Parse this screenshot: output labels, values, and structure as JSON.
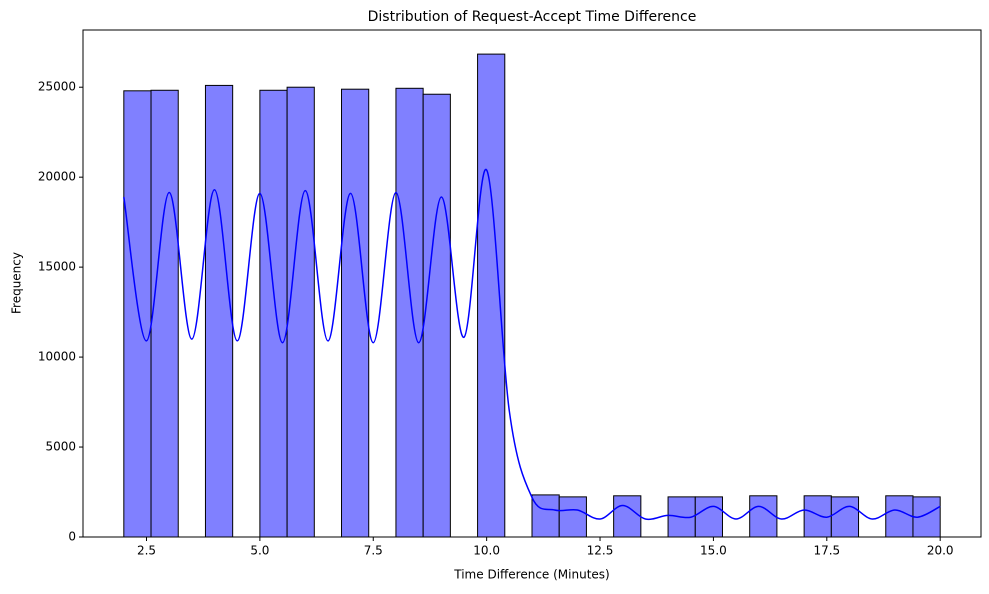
{
  "chart_data": {
    "type": "histogram",
    "title": "Distribution of Request-Accept Time Difference",
    "x_label": "Time Difference (Minutes)",
    "y_label": "Frequency",
    "bins": [
      2,
      2.6,
      3.2,
      3.8,
      4.4,
      5,
      5.6,
      6.2,
      6.8,
      7.4,
      8,
      8.6,
      9.2,
      9.8,
      10.4,
      11,
      11.6,
      12.2,
      12.8,
      13.4,
      14,
      14.6,
      15.2,
      15.8,
      16.4,
      17,
      17.6,
      18.2,
      18.8,
      19.4,
      20
    ],
    "values": [
      24800,
      24830,
      0,
      25100,
      0,
      24830,
      25000,
      0,
      24890,
      0,
      24940,
      24610,
      0,
      26840,
      0,
      2340,
      2230,
      0,
      2290,
      0,
      2230,
      2230,
      0,
      2290,
      0,
      2290,
      2230,
      0,
      2290,
      2230
    ],
    "color": "#8080ff",
    "edge_color": "#000000",
    "kde": {
      "color": "#0000ff",
      "x": [
        2,
        2.5,
        3,
        3.5,
        4,
        4.5,
        5,
        5.5,
        6,
        6.5,
        7,
        7.5,
        8,
        8.5,
        9,
        9.5,
        10,
        10.5,
        11,
        11.5,
        12,
        12.5,
        13,
        13.5,
        14,
        14.5,
        15,
        15.5,
        16,
        16.5,
        17,
        17.5,
        18,
        18.5,
        19,
        19.5,
        20
      ],
      "values": [
        18900,
        10900,
        19150,
        11000,
        19300,
        10900,
        19100,
        10800,
        19250,
        10900,
        19100,
        10800,
        19150,
        10800,
        18900,
        11100,
        20400,
        7000,
        2200,
        1500,
        1500,
        1000,
        1750,
        1000,
        1200,
        1100,
        1700,
        1000,
        1700,
        1000,
        1500,
        1100,
        1700,
        1000,
        1500,
        1100,
        1700
      ]
    },
    "xlim": [
      1.1,
      20.9
    ],
    "ylim": [
      0,
      28180
    ],
    "xticks": [
      2.5,
      {
        "value": 5,
        "label": "5.0"
      },
      7.5,
      {
        "value": 10,
        "label": "10.0"
      },
      12.5,
      {
        "value": 15,
        "label": "15.0"
      },
      17.5,
      {
        "value": 20,
        "label": "20.0"
      }
    ],
    "yticks": [
      0,
      5000,
      10000,
      15000,
      20000,
      25000
    ]
  }
}
